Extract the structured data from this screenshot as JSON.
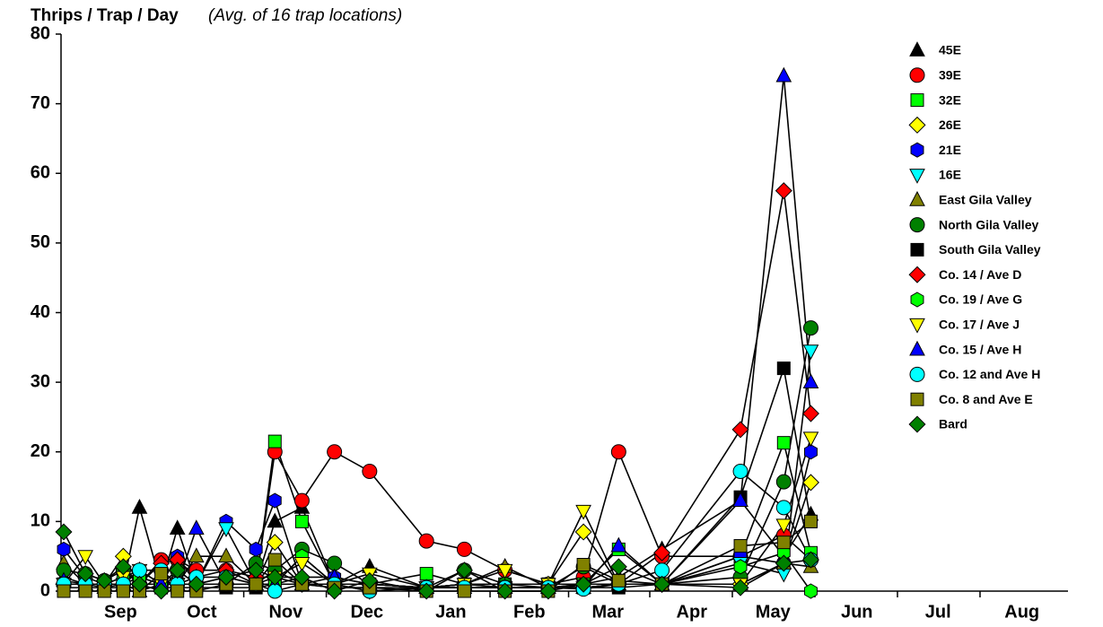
{
  "chart_data": {
    "type": "line",
    "title": "Thrips / Trap / Day",
    "subtitle": "(Avg. of 16 trap locations)",
    "x": [
      -6,
      2,
      9,
      16,
      22,
      30,
      36,
      43,
      54,
      65,
      72,
      82,
      94,
      107,
      128,
      142,
      157,
      173,
      186,
      199,
      215,
      244,
      260,
      270
    ],
    "xlim": [
      -7,
      365
    ],
    "xticks": [
      {
        "value": 15,
        "label": "Sep"
      },
      {
        "value": 45,
        "label": "Oct"
      },
      {
        "value": 76,
        "label": "Nov"
      },
      {
        "value": 106,
        "label": "Dec"
      },
      {
        "value": 137,
        "label": "Jan"
      },
      {
        "value": 166,
        "label": "Feb"
      },
      {
        "value": 195,
        "label": "Mar"
      },
      {
        "value": 226,
        "label": "Apr"
      },
      {
        "value": 256,
        "label": "May"
      },
      {
        "value": 287,
        "label": "Jun"
      },
      {
        "value": 317,
        "label": "Jul"
      },
      {
        "value": 348,
        "label": "Aug"
      }
    ],
    "ylim": [
      0,
      80
    ],
    "yticks": [
      0,
      10,
      20,
      30,
      40,
      50,
      60,
      70,
      80
    ],
    "line_color": "#000000",
    "legend": "top-right",
    "series": [
      {
        "name": "45E",
        "color": "#000000",
        "marker": "triangle-up",
        "values": [
          2,
          1,
          0.5,
          1,
          12,
          1,
          9,
          1,
          2,
          1,
          10,
          12,
          1,
          3.5,
          0.5,
          1,
          0.5,
          0.5,
          1,
          2,
          6,
          13,
          5,
          11
        ]
      },
      {
        "name": "39E",
        "color": "#ff0000",
        "marker": "circle",
        "values": [
          1,
          1,
          1,
          1,
          1,
          4.5,
          4.5,
          3,
          3,
          1,
          20,
          13,
          20,
          17.2,
          7.2,
          6,
          3,
          1,
          2,
          20,
          5,
          5,
          8,
          4.5
        ]
      },
      {
        "name": "32E",
        "color": "#00ff00",
        "marker": "square",
        "values": [
          1,
          1,
          1,
          2,
          2,
          1,
          1,
          1,
          1,
          1,
          21.5,
          10,
          1,
          1,
          2.5,
          1,
          1,
          1,
          1,
          6,
          1,
          5,
          21.3,
          5.5
        ]
      },
      {
        "name": "26E",
        "color": "#ffff00",
        "marker": "diamond",
        "values": [
          1,
          1,
          1,
          5,
          1,
          1,
          1,
          1,
          1,
          1,
          7,
          1,
          1,
          1,
          0.5,
          1,
          1,
          1,
          8.5,
          1,
          1,
          1,
          4,
          15.6
        ]
      },
      {
        "name": "21E",
        "color": "#0000ff",
        "marker": "hexagon",
        "values": [
          6,
          2,
          1,
          1,
          1,
          1,
          5,
          1,
          10,
          6,
          13,
          1,
          2,
          1,
          0.5,
          1,
          0.5,
          0.5,
          1,
          1,
          1,
          5,
          4,
          20
        ]
      },
      {
        "name": "16E",
        "color": "#00ffff",
        "marker": "triangle-down",
        "values": [
          1,
          1,
          1,
          1,
          1,
          1,
          1,
          1,
          9,
          1,
          1,
          5,
          1,
          0,
          0.5,
          0.5,
          0.5,
          0.5,
          0.5,
          1,
          1,
          4,
          2.5,
          34.5
        ]
      },
      {
        "name": "East Gila Valley",
        "color": "#808000",
        "marker": "triangle-up",
        "values": [
          4,
          1,
          1,
          1,
          3,
          1,
          1,
          5,
          5,
          1,
          3,
          1,
          1,
          1,
          0.5,
          1,
          3.5,
          0.5,
          0.5,
          1,
          1,
          1,
          4,
          3.5
        ]
      },
      {
        "name": "North Gila Valley",
        "color": "#008000",
        "marker": "circle",
        "values": [
          3,
          2.5,
          1.5,
          3,
          1,
          1,
          3,
          1,
          1,
          4,
          3,
          6,
          4,
          1,
          0.5,
          3,
          1,
          0.5,
          3.5,
          1,
          1,
          2,
          15.7,
          37.8
        ]
      },
      {
        "name": "South Gila Valley",
        "color": "#000000",
        "marker": "square",
        "values": [
          0.5,
          0.5,
          0.5,
          0.5,
          0.5,
          0.5,
          0.5,
          0.5,
          0.5,
          0.5,
          1,
          1,
          0.5,
          0.5,
          0.5,
          0.5,
          0.5,
          0.5,
          0.5,
          0.5,
          1,
          13.5,
          32,
          10
        ]
      },
      {
        "name": "Co. 14 / Ave D",
        "color": "#ff0000",
        "marker": "diamond",
        "values": [
          1,
          1,
          1,
          1,
          1,
          4,
          4.5,
          2,
          3,
          2,
          2,
          1,
          1,
          1,
          0.5,
          0.5,
          0.5,
          0.5,
          0.5,
          1,
          5.5,
          23.2,
          57.5,
          25.5
        ]
      },
      {
        "name": "Co. 19 / Ave G",
        "color": "#00ff00",
        "marker": "hexagon",
        "values": [
          1,
          1,
          1,
          1,
          2,
          1,
          1,
          1,
          1,
          1,
          1,
          5,
          1,
          1,
          0.5,
          0.5,
          0.5,
          0.5,
          0.5,
          1,
          1,
          3.5,
          5.5,
          0
        ]
      },
      {
        "name": "Co. 17 / Ave J",
        "color": "#ffff00",
        "marker": "triangle-down",
        "values": [
          1,
          5,
          1,
          2,
          3,
          1,
          1,
          1,
          1,
          1,
          2,
          4,
          1,
          2.5,
          0.5,
          1,
          3,
          1,
          11.5,
          1,
          1,
          1,
          9.5,
          22
        ]
      },
      {
        "name": "Co. 15 / Ave H",
        "color": "#0000ff",
        "marker": "triangle-up",
        "values": [
          1.5,
          1,
          1,
          1,
          0,
          1,
          1,
          9,
          1,
          1,
          1,
          2,
          2,
          1,
          0.5,
          0.5,
          0.5,
          0.5,
          0.5,
          6.5,
          1,
          13,
          74,
          30
        ]
      },
      {
        "name": "Co. 12 and Ave H",
        "color": "#00ffff",
        "marker": "circle",
        "values": [
          1,
          1,
          1,
          1,
          3,
          3,
          1,
          2,
          2,
          1,
          0,
          1,
          1,
          0,
          0.5,
          0.5,
          0.5,
          0.5,
          0.3,
          1,
          3,
          17.2,
          12,
          4.5
        ]
      },
      {
        "name": "Co. 8 and Ave E",
        "color": "#808000",
        "marker": "square",
        "values": [
          0,
          0,
          0,
          0,
          0,
          2.5,
          0,
          0,
          1,
          1,
          4.5,
          1,
          0.5,
          0.5,
          0,
          0,
          0,
          0,
          3.8,
          1.5,
          1,
          6.5,
          7,
          10
        ]
      },
      {
        "name": "Bard",
        "color": "#008000",
        "marker": "diamond",
        "values": [
          8.5,
          2.5,
          1.5,
          3.5,
          1,
          0,
          3,
          1,
          2,
          3,
          2,
          2,
          0,
          1.5,
          0,
          3,
          0,
          0,
          1,
          3.5,
          1,
          0.5,
          4,
          4.5
        ]
      }
    ]
  }
}
